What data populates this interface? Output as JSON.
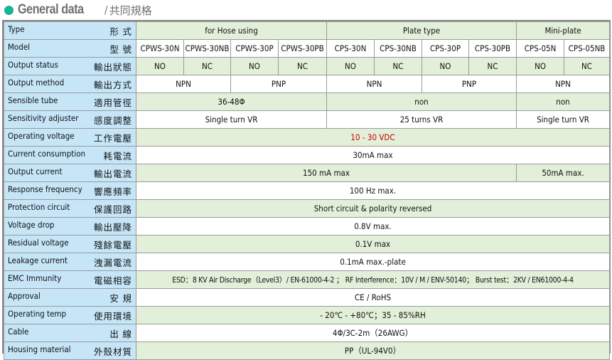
{
  "header": {
    "title_en": "General data",
    "separator": "/",
    "title_zh": "共同規格"
  },
  "rows": [
    {
      "en": "Type",
      "zh": "形 式",
      "cells": [
        {
          "t": "for Hose using",
          "s": 4
        },
        {
          "t": "Plate type",
          "s": 4
        },
        {
          "t": "Mini-plate",
          "s": 2
        }
      ]
    },
    {
      "en": "Model",
      "zh": "型 號",
      "cells": [
        {
          "t": "CPWS-30N",
          "s": 1
        },
        {
          "t": "CPWS-30NB",
          "s": 1
        },
        {
          "t": "CPWS-30P",
          "s": 1
        },
        {
          "t": "CPWS-30PB",
          "s": 1
        },
        {
          "t": "CPS-30N",
          "s": 1
        },
        {
          "t": "CPS-30NB",
          "s": 1
        },
        {
          "t": "CPS-30P",
          "s": 1
        },
        {
          "t": "CPS-30PB",
          "s": 1
        },
        {
          "t": "CPS-05N",
          "s": 1
        },
        {
          "t": "CPS-05NB",
          "s": 1
        }
      ]
    },
    {
      "en": "Output status",
      "zh": "輸出狀態",
      "cells": [
        {
          "t": "NO",
          "s": 1
        },
        {
          "t": "NC",
          "s": 1
        },
        {
          "t": "NO",
          "s": 1
        },
        {
          "t": "NC",
          "s": 1
        },
        {
          "t": "NO",
          "s": 1
        },
        {
          "t": "NC",
          "s": 1
        },
        {
          "t": "NO",
          "s": 1
        },
        {
          "t": "NC",
          "s": 1
        },
        {
          "t": "NO",
          "s": 1
        },
        {
          "t": "NC",
          "s": 1
        }
      ]
    },
    {
      "en": "Output method",
      "zh": "輸出方式",
      "cells": [
        {
          "t": "NPN",
          "s": 2
        },
        {
          "t": "PNP",
          "s": 2
        },
        {
          "t": "NPN",
          "s": 2
        },
        {
          "t": "PNP",
          "s": 2
        },
        {
          "t": "NPN",
          "s": 2
        }
      ]
    },
    {
      "en": "Sensible tube",
      "zh": "適用管徑",
      "cells": [
        {
          "t": "36-48Φ",
          "s": 4
        },
        {
          "t": "non",
          "s": 4
        },
        {
          "t": "non",
          "s": 2
        }
      ]
    },
    {
      "en": "Sensitivity adjuster",
      "zh": "感度調整",
      "cells": [
        {
          "t": "Single turn VR",
          "s": 4
        },
        {
          "t": "25 turns VR",
          "s": 4
        },
        {
          "t": "Single turn VR",
          "s": 2
        }
      ]
    },
    {
      "en": "Operating voltage",
      "zh": "工作電壓",
      "cells": [
        {
          "t": "10 - 30 VDC",
          "s": 10,
          "red": true
        }
      ]
    },
    {
      "en": "Current consumption",
      "zh": "耗電流",
      "cells": [
        {
          "t": "30mA max",
          "s": 10
        }
      ]
    },
    {
      "en": "Output current",
      "zh": "輸出電流",
      "cells": [
        {
          "t": "150 mA max",
          "s": 8
        },
        {
          "t": "50mA max.",
          "s": 2
        }
      ]
    },
    {
      "en": "Response frequency",
      "zh": "響應頻率",
      "cells": [
        {
          "t": "100 Hz max.",
          "s": 10
        }
      ]
    },
    {
      "en": "Protection circuit",
      "zh": "保護回路",
      "cells": [
        {
          "t": "Short circuit & polarity reversed",
          "s": 10
        }
      ]
    },
    {
      "en": "Voltage drop",
      "zh": "輸出壓降",
      "cells": [
        {
          "t": "0.8V max.",
          "s": 10
        }
      ]
    },
    {
      "en": "Residual voltage",
      "zh": "殘餘電壓",
      "cells": [
        {
          "t": "0.1V max",
          "s": 10
        }
      ]
    },
    {
      "en": "Leakage current",
      "zh": "洩漏電流",
      "cells": [
        {
          "t": "0.1mA max.-plate",
          "s": 10
        }
      ]
    },
    {
      "en": "EMC Immunity",
      "zh": "電磁相容",
      "cells": [
        {
          "t": "ESD：8 KV Air Discharge（Level3）/ EN-61000-4-2 ； RF Interference：10V / M / ENV-50140； Burst test：2KV / EN61000-4-4",
          "s": 10,
          "small": true
        }
      ]
    },
    {
      "en": "Approval",
      "zh": "安 規",
      "cells": [
        {
          "t": "CE / RoHS",
          "s": 10
        }
      ]
    },
    {
      "en": "Operating temp",
      "zh": "使用環境",
      "cells": [
        {
          "t": "- 20℃ - +80℃；35 - 85%RH",
          "s": 10
        }
      ]
    },
    {
      "en": "Cable",
      "zh": "出 線",
      "cells": [
        {
          "t": "4Φ/3C-2m（26AWG）",
          "s": 10
        }
      ]
    },
    {
      "en": "Housing material",
      "zh": "外殼材質",
      "cells": [
        {
          "t": "PP（UL-94V0）",
          "s": 10
        }
      ]
    }
  ]
}
